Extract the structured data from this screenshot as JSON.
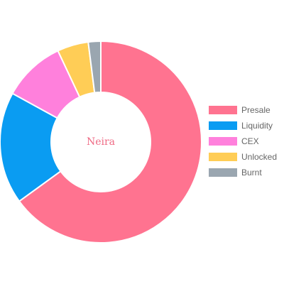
{
  "chart_data": {
    "type": "pie",
    "variant": "doughnut",
    "title": "",
    "center_label": "Neira",
    "categories": [
      "Presale",
      "Liquidity",
      "CEX",
      "Unlocked",
      "Burnt"
    ],
    "values": [
      65,
      18,
      10,
      5,
      2
    ],
    "colors": [
      "#ff7390",
      "#0a9cf2",
      "#ff80dc",
      "#ffcd56",
      "#9aa6b0"
    ],
    "legend_position": "right",
    "start_angle_deg": -90
  }
}
